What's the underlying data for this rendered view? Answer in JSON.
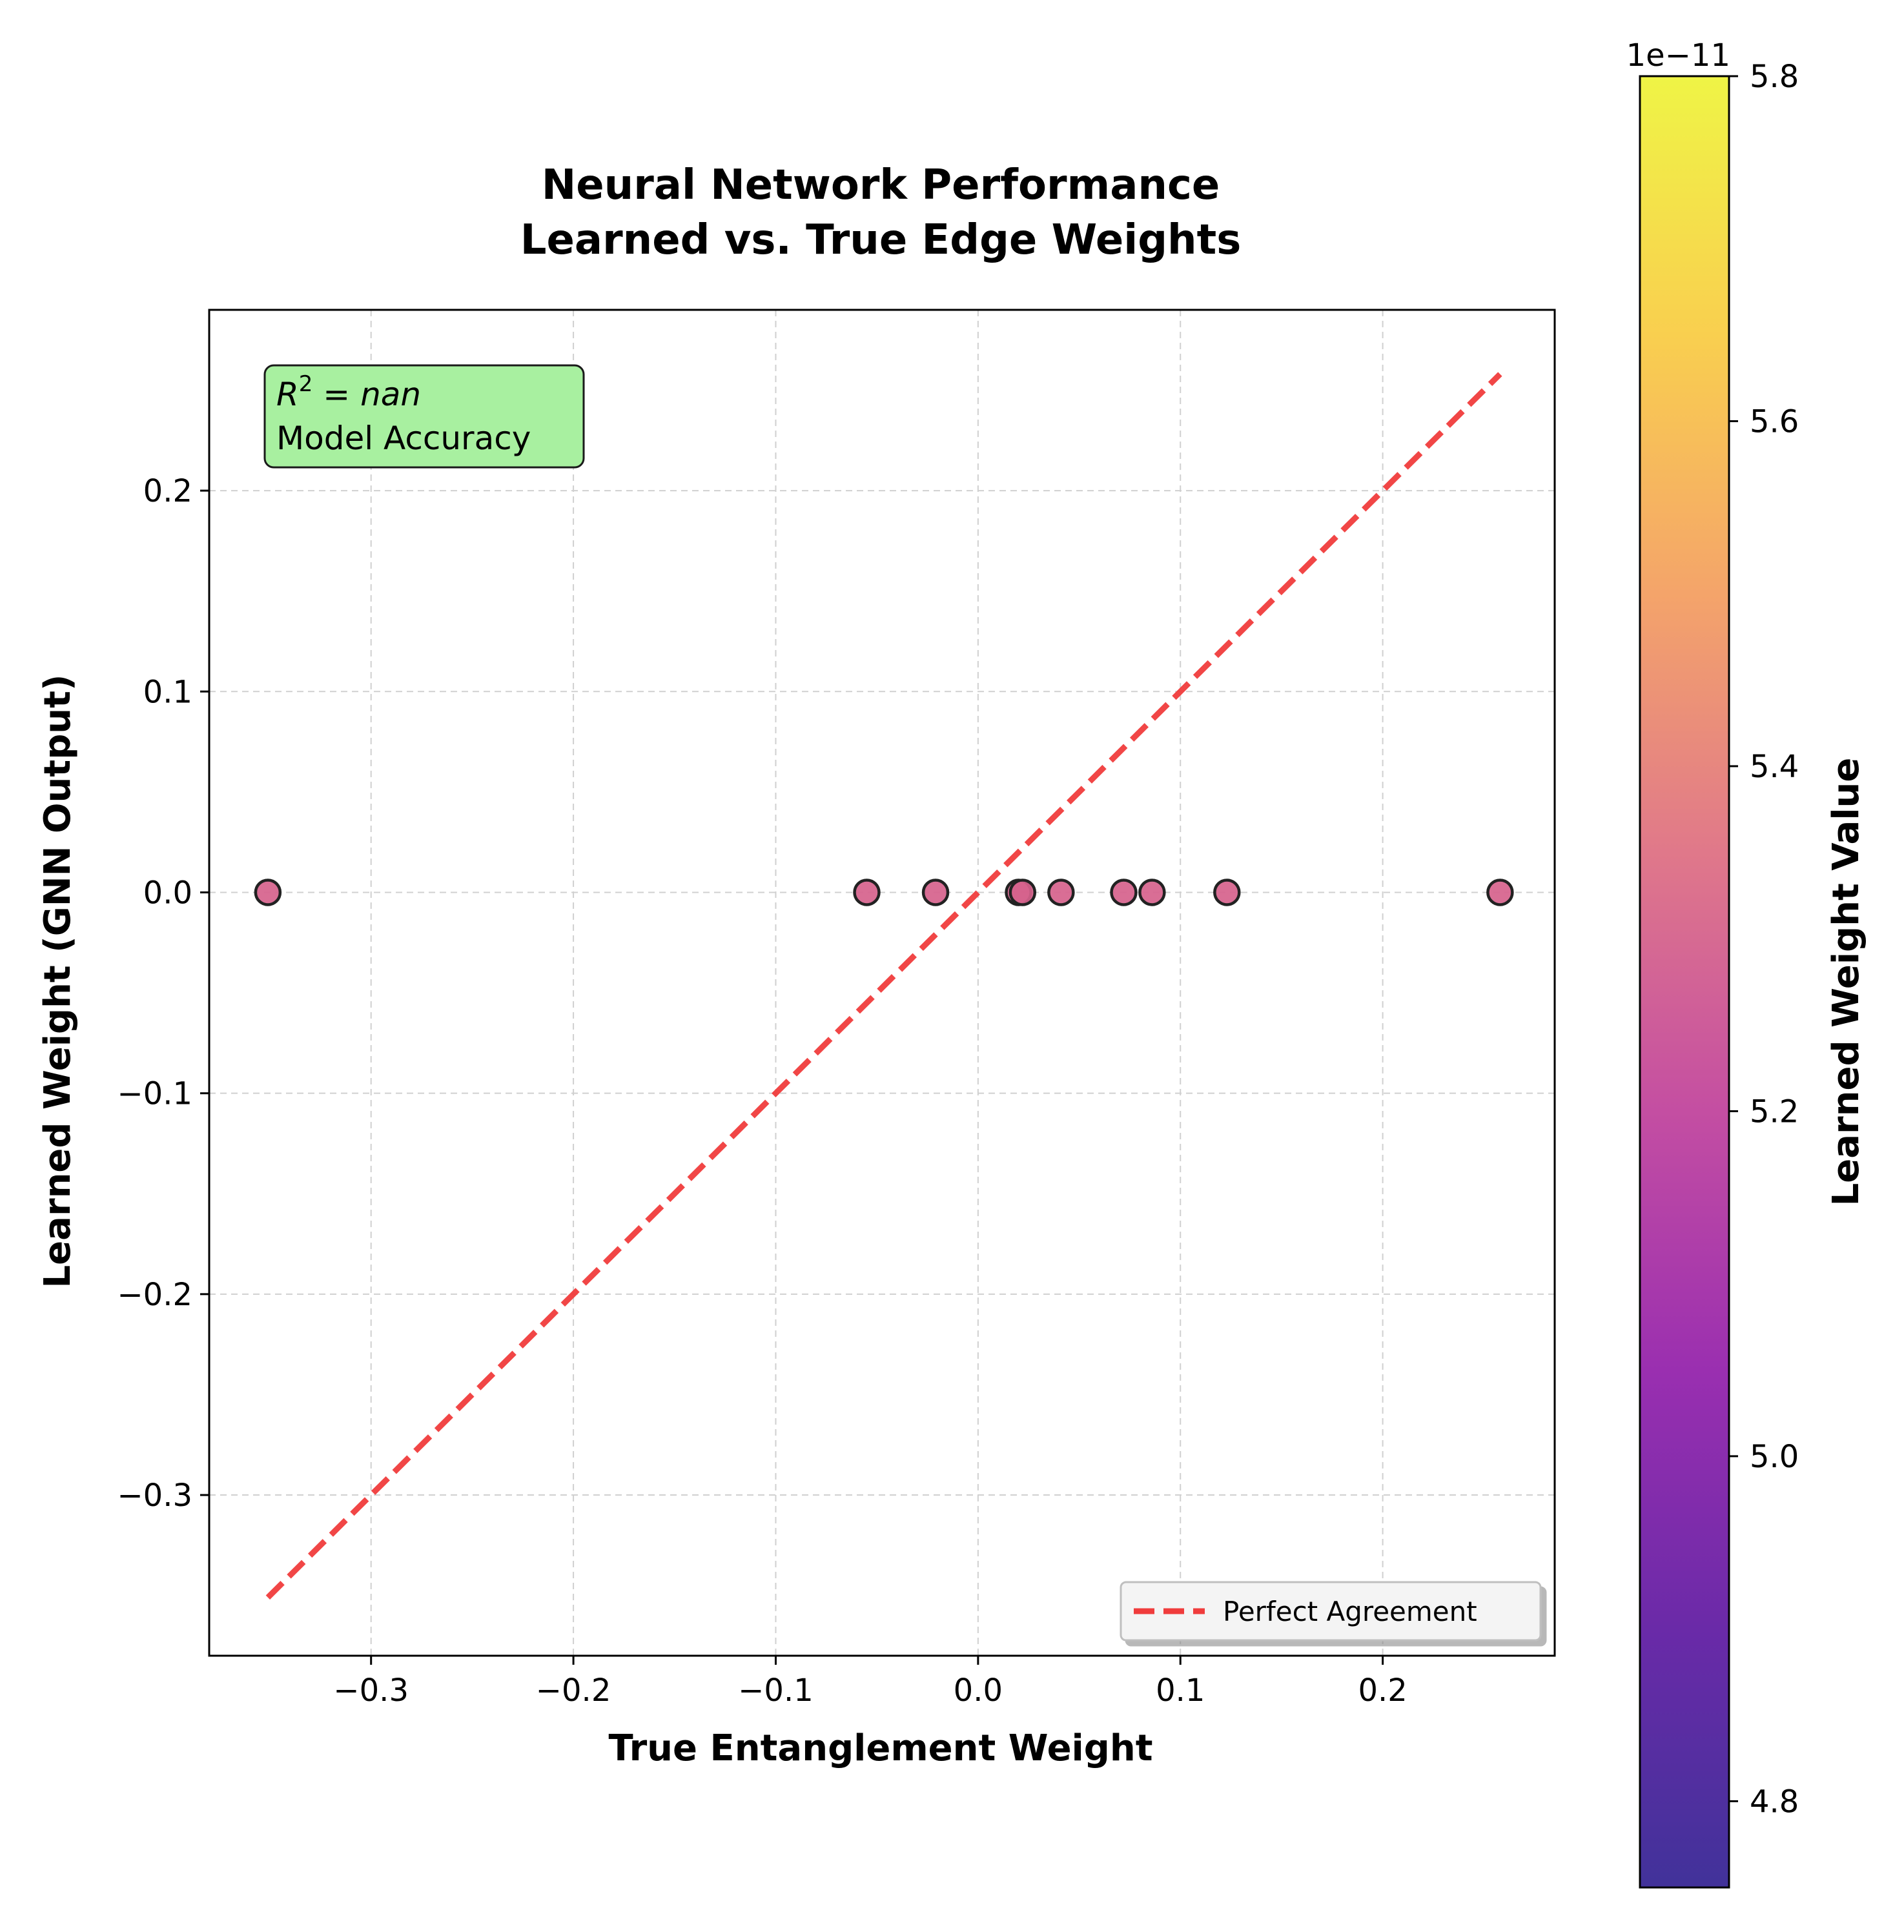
{
  "chart_data": {
    "type": "scatter",
    "title": [
      "Neural Network Performance",
      "Learned vs. True Edge Weights"
    ],
    "xlabel": "True Entanglement Weight",
    "ylabel": "Learned Weight (GNN Output)",
    "xlim": [
      -0.38,
      0.285
    ],
    "ylim": [
      -0.38,
      0.29
    ],
    "x_ticks": [
      -0.3,
      -0.2,
      -0.1,
      0.0,
      0.1,
      0.2
    ],
    "x_tick_labels": [
      "−0.3",
      "−0.2",
      "−0.1",
      "0.0",
      "0.1",
      "0.2"
    ],
    "y_ticks": [
      0.2,
      0.1,
      0.0,
      -0.1,
      -0.2,
      -0.3
    ],
    "y_tick_labels": [
      "0.2",
      "0.1",
      "0.0",
      "−0.1",
      "−0.2",
      "−0.3"
    ],
    "grid": true,
    "points": {
      "x": [
        -0.351,
        -0.055,
        -0.021,
        0.02,
        0.022,
        0.041,
        0.072,
        0.086,
        0.123,
        0.258
      ],
      "y": [
        0,
        0,
        0,
        0,
        0,
        0,
        0,
        0,
        0,
        0
      ],
      "color": "#d6628c"
    },
    "reference_line": {
      "name": "Perfect Agreement",
      "x": [
        -0.351,
        0.258
      ],
      "y": [
        -0.351,
        0.258
      ],
      "color": "#f03c3c",
      "style": "dashed"
    },
    "legend": {
      "placement": "lower-right",
      "entries": [
        "Perfect Agreement"
      ]
    },
    "annotation": {
      "math": "R",
      "superscript": "2",
      "math_rest": " = nan",
      "text": "Model Accuracy",
      "background": "#a8f0a0",
      "placement": "top-left"
    },
    "colorbar": {
      "label": "Learned Weight Value",
      "multiplier": "1e−11",
      "range": [
        4.75,
        5.8
      ],
      "ticks": [
        4.8,
        5.0,
        5.2,
        5.4,
        5.6,
        5.8
      ],
      "tick_labels": [
        "4.8",
        "5.0",
        "5.2",
        "5.4",
        "5.6",
        "5.8"
      ],
      "colormap": "plasma",
      "gradient": [
        "#41329a",
        "#6a2aa8",
        "#9a2fb0",
        "#c44ea2",
        "#e0788a",
        "#f4a46a",
        "#f9cf4f",
        "#eff446"
      ]
    }
  }
}
